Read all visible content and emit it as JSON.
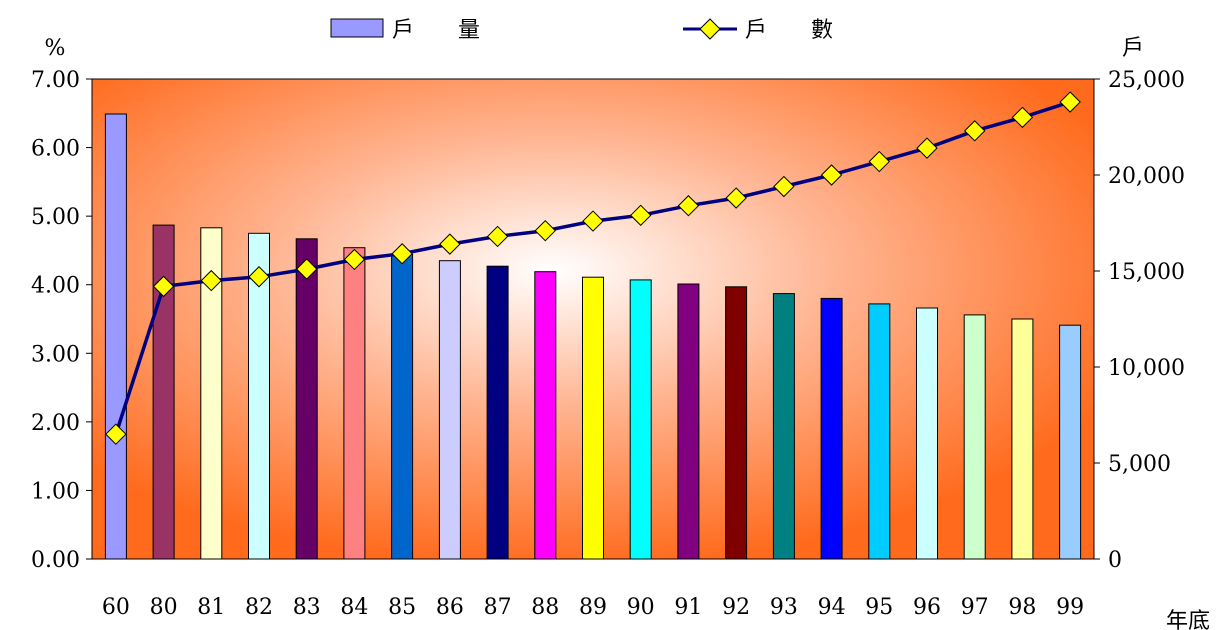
{
  "chart_data": {
    "type": "bar",
    "categories": [
      "60",
      "80",
      "81",
      "82",
      "83",
      "84",
      "85",
      "86",
      "87",
      "88",
      "89",
      "90",
      "91",
      "92",
      "93",
      "94",
      "95",
      "96",
      "97",
      "98",
      "99"
    ],
    "series": [
      {
        "name": "戶　　量",
        "type": "bar",
        "axis": "left",
        "values": [
          6.49,
          4.87,
          4.83,
          4.75,
          4.67,
          4.54,
          4.44,
          4.35,
          4.27,
          4.19,
          4.11,
          4.07,
          4.01,
          3.97,
          3.87,
          3.8,
          3.72,
          3.66,
          3.56,
          3.5,
          3.41
        ],
        "colors": [
          "#9999ff",
          "#993366",
          "#ffffcc",
          "#ccffff",
          "#660066",
          "#ff8080",
          "#0066cc",
          "#ccccff",
          "#000080",
          "#ff00ff",
          "#ffff00",
          "#00ffff",
          "#800080",
          "#800000",
          "#008080",
          "#0000ff",
          "#00ccff",
          "#ccffff",
          "#ccffcc",
          "#ffff99",
          "#99ccff"
        ]
      },
      {
        "name": "戶　　數",
        "type": "line",
        "axis": "right",
        "values": [
          6500,
          14200,
          14500,
          14700,
          15100,
          15600,
          15900,
          16400,
          16800,
          17100,
          17600,
          17900,
          18400,
          18800,
          19400,
          20000,
          20700,
          21400,
          22300,
          23000,
          23800
        ],
        "color": "#000080",
        "marker_color": "#ffff00"
      }
    ],
    "y_left": {
      "unit": "%",
      "ticks": [
        "0.00",
        "1.00",
        "2.00",
        "3.00",
        "4.00",
        "5.00",
        "6.00",
        "7.00"
      ],
      "lim": [
        0,
        7
      ]
    },
    "y_right": {
      "unit": "戶",
      "ticks": [
        "0",
        "5,000",
        "10,000",
        "15,000",
        "20,000",
        "25,000"
      ],
      "lim": [
        0,
        25000
      ]
    },
    "xlabel": "年底",
    "legend": "top",
    "grid": false
  }
}
